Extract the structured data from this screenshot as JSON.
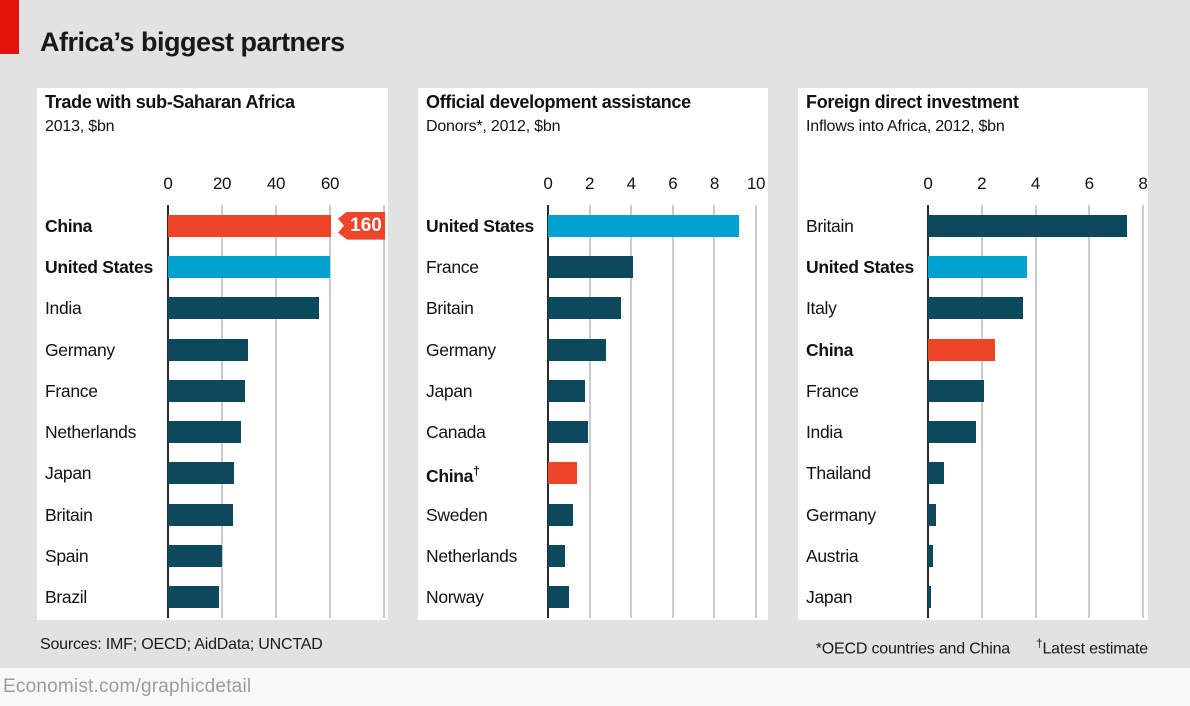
{
  "header": {
    "title": "Africa’s biggest partners"
  },
  "footer": {
    "sources": "Sources: IMF; OECD; AidData; UNCTAD",
    "note_left": "*OECD countries and China",
    "note_dagger": "†",
    "note_right_text": "Latest estimate",
    "url": "Economist.com/graphicdetail"
  },
  "colors": {
    "brand_red": "#e3120b",
    "bar_red": "#ee4428",
    "bar_cyan": "#00a3d0",
    "bar_navy": "#0d495d",
    "page_bg": "#e2e2e2",
    "panel_bg": "#ffffff",
    "grid": "#cbcbcb",
    "axis": "#2b2b2b"
  },
  "chart_data": [
    {
      "type": "bar",
      "orientation": "horizontal",
      "title": "Trade with sub-Saharan Africa",
      "subtitle": "2013, $bn",
      "xlim": [
        0,
        80
      ],
      "ticks": [
        0,
        20,
        40,
        60
      ],
      "extra_gridlines": [
        80
      ],
      "grid": true,
      "bars": [
        {
          "label": "China",
          "value": 160,
          "bar_shown_to": 60.5,
          "truncated": true,
          "badge": "160",
          "color": "red",
          "bold": true
        },
        {
          "label": "United States",
          "value": 60,
          "color": "cyan",
          "bold": true
        },
        {
          "label": "India",
          "value": 56,
          "color": "navy"
        },
        {
          "label": "Germany",
          "value": 29.5,
          "color": "navy"
        },
        {
          "label": "France",
          "value": 28.5,
          "color": "navy"
        },
        {
          "label": "Netherlands",
          "value": 27,
          "color": "navy"
        },
        {
          "label": "Japan",
          "value": 24.5,
          "color": "navy"
        },
        {
          "label": "Britain",
          "value": 24,
          "color": "navy"
        },
        {
          "label": "Spain",
          "value": 20,
          "color": "navy"
        },
        {
          "label": "Brazil",
          "value": 19,
          "color": "navy"
        }
      ]
    },
    {
      "type": "bar",
      "orientation": "horizontal",
      "title": "Official development assistance",
      "subtitle": "Donors*, 2012, $bn",
      "xlim": [
        0,
        10
      ],
      "ticks": [
        0,
        2,
        4,
        6,
        8,
        10
      ],
      "grid": true,
      "bars": [
        {
          "label": "United States",
          "value": 9.2,
          "color": "cyan",
          "bold": true
        },
        {
          "label": "France",
          "value": 4.1,
          "color": "navy"
        },
        {
          "label": "Britain",
          "value": 3.5,
          "color": "navy"
        },
        {
          "label": "Germany",
          "value": 2.8,
          "color": "navy"
        },
        {
          "label": "Japan",
          "value": 1.8,
          "color": "navy"
        },
        {
          "label": "Canada",
          "value": 1.9,
          "color": "navy"
        },
        {
          "label": "China",
          "suffix": "†",
          "value": 1.4,
          "color": "red",
          "bold": true
        },
        {
          "label": "Sweden",
          "value": 1.2,
          "color": "navy"
        },
        {
          "label": "Netherlands",
          "value": 0.8,
          "color": "navy"
        },
        {
          "label": "Norway",
          "value": 1.0,
          "color": "navy"
        }
      ]
    },
    {
      "type": "bar",
      "orientation": "horizontal",
      "title": "Foreign direct investment",
      "subtitle": "Inflows into Africa, 2012, $bn",
      "xlim": [
        0,
        8
      ],
      "ticks": [
        0,
        2,
        4,
        6,
        8
      ],
      "grid": true,
      "bars": [
        {
          "label": "Britain",
          "value": 7.4,
          "color": "navy"
        },
        {
          "label": "United States",
          "value": 3.7,
          "color": "cyan",
          "bold": true
        },
        {
          "label": "Italy",
          "value": 3.55,
          "color": "navy"
        },
        {
          "label": "China",
          "value": 2.5,
          "color": "red",
          "bold": true
        },
        {
          "label": "France",
          "value": 2.1,
          "color": "navy"
        },
        {
          "label": "India",
          "value": 1.8,
          "color": "navy"
        },
        {
          "label": "Thailand",
          "value": 0.6,
          "color": "navy"
        },
        {
          "label": "Germany",
          "value": 0.3,
          "color": "navy"
        },
        {
          "label": "Austria",
          "value": 0.2,
          "color": "navy"
        },
        {
          "label": "Japan",
          "value": 0.1,
          "color": "navy"
        }
      ]
    }
  ]
}
